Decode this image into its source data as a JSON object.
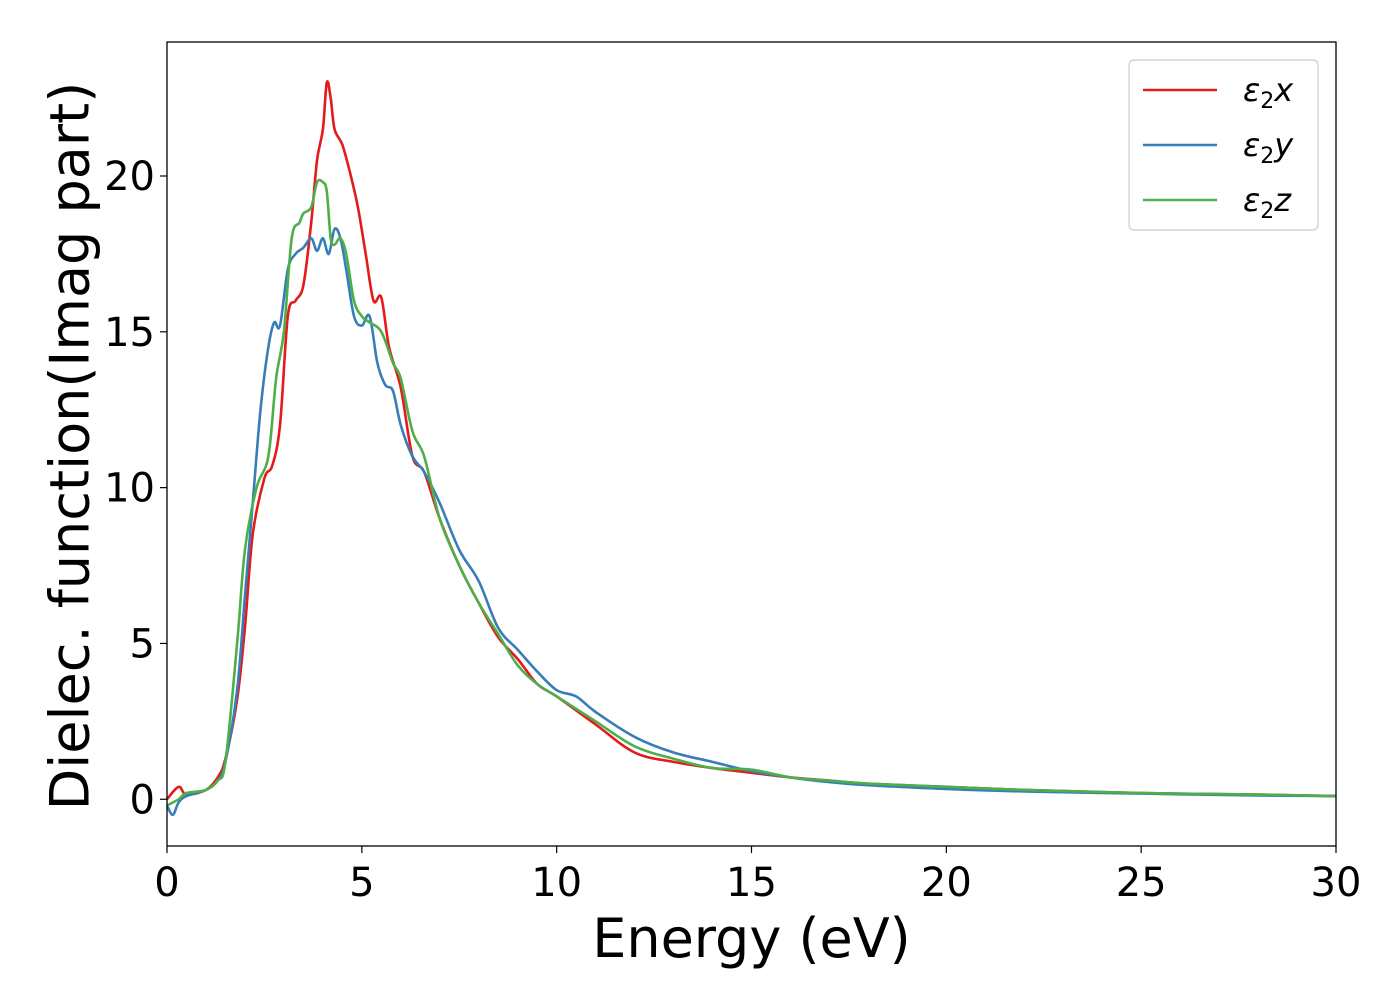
{
  "chart_data": {
    "type": "line",
    "title": "",
    "xlabel": "Energy (eV)",
    "ylabel": "Dielec. function(Imag part)",
    "xlim": [
      0,
      30
    ],
    "ylim": [
      -1.5,
      24.3
    ],
    "xticks": [
      0,
      5,
      10,
      15,
      20,
      25,
      30
    ],
    "yticks": [
      0,
      5,
      10,
      15,
      20
    ],
    "grid": false,
    "legend_position": "top-right",
    "series": [
      {
        "name": "ε2x",
        "legend": {
          "base": "ε",
          "sub": "2",
          "var": "x"
        },
        "color": "#e41a1c",
        "x": [
          0,
          0.3,
          0.5,
          1.0,
          1.3,
          1.5,
          1.8,
          2.0,
          2.2,
          2.5,
          2.7,
          2.9,
          3.1,
          3.3,
          3.5,
          3.7,
          3.85,
          4.0,
          4.1,
          4.2,
          4.3,
          4.5,
          4.7,
          4.9,
          5.1,
          5.3,
          5.5,
          5.7,
          6.0,
          6.3,
          6.6,
          7.0,
          7.5,
          8.0,
          8.5,
          9.0,
          9.5,
          10,
          11,
          12,
          13,
          14,
          15,
          16,
          17,
          18,
          20,
          22,
          25,
          28,
          30
        ],
        "y": [
          0.0,
          0.4,
          0.15,
          0.3,
          0.7,
          1.3,
          3.2,
          5.5,
          8.5,
          10.3,
          10.7,
          12.0,
          15.5,
          16.0,
          16.5,
          18.5,
          20.5,
          21.5,
          23.0,
          22.5,
          21.5,
          21.0,
          20.1,
          19.0,
          17.5,
          16.0,
          16.1,
          14.5,
          13.2,
          11.0,
          10.5,
          9.0,
          7.5,
          6.3,
          5.2,
          4.5,
          3.7,
          3.3,
          2.4,
          1.5,
          1.2,
          1.0,
          0.85,
          0.7,
          0.6,
          0.5,
          0.4,
          0.3,
          0.2,
          0.15,
          0.1
        ]
      },
      {
        "name": "ε2y",
        "legend": {
          "base": "ε",
          "sub": "2",
          "var": "y"
        },
        "color": "#377eb8",
        "x": [
          0,
          0.15,
          0.3,
          0.5,
          1.0,
          1.3,
          1.5,
          1.8,
          2.0,
          2.2,
          2.4,
          2.6,
          2.75,
          2.9,
          3.1,
          3.3,
          3.5,
          3.7,
          3.85,
          4.0,
          4.15,
          4.3,
          4.45,
          4.6,
          4.8,
          5.0,
          5.2,
          5.4,
          5.6,
          5.8,
          6.0,
          6.3,
          6.6,
          7.0,
          7.5,
          8.0,
          8.5,
          9.0,
          9.5,
          10,
          10.5,
          11,
          12,
          13,
          14,
          15,
          16,
          17,
          18,
          20,
          22,
          25,
          28,
          30
        ],
        "y": [
          -0.2,
          -0.5,
          -0.1,
          0.1,
          0.3,
          0.6,
          1.2,
          3.5,
          6.5,
          9.5,
          12.5,
          14.5,
          15.3,
          15.2,
          17.0,
          17.5,
          17.7,
          18.0,
          17.6,
          18.0,
          17.5,
          18.3,
          18.0,
          17.0,
          15.5,
          15.2,
          15.5,
          14.0,
          13.3,
          13.1,
          12.0,
          11.0,
          10.5,
          9.5,
          8.0,
          7.0,
          5.5,
          4.8,
          4.1,
          3.5,
          3.3,
          2.8,
          2.0,
          1.5,
          1.2,
          0.9,
          0.7,
          0.55,
          0.45,
          0.33,
          0.25,
          0.18,
          0.12,
          0.1
        ]
      },
      {
        "name": "ε2z",
        "legend": {
          "base": "ε",
          "sub": "2",
          "var": "z"
        },
        "color": "#4daf4a",
        "x": [
          0,
          0.3,
          0.5,
          1.0,
          1.3,
          1.5,
          1.8,
          2.0,
          2.3,
          2.6,
          2.8,
          3.0,
          3.2,
          3.4,
          3.5,
          3.7,
          3.85,
          4.0,
          4.1,
          4.2,
          4.3,
          4.45,
          4.6,
          4.8,
          5.0,
          5.2,
          5.5,
          5.8,
          6.0,
          6.3,
          6.6,
          7.0,
          7.5,
          8.0,
          8.5,
          9.0,
          9.5,
          10,
          11,
          12,
          13,
          14,
          15,
          16,
          17,
          18,
          20,
          22,
          25,
          28,
          30
        ],
        "y": [
          -0.2,
          0.0,
          0.2,
          0.3,
          0.6,
          1.2,
          5.0,
          8.0,
          10.0,
          11.0,
          13.5,
          15.0,
          18.0,
          18.5,
          18.8,
          19.0,
          19.8,
          19.8,
          19.5,
          18.0,
          17.8,
          18.0,
          17.5,
          16.0,
          15.5,
          15.3,
          15.0,
          14.0,
          13.5,
          11.8,
          11.0,
          9.0,
          7.5,
          6.3,
          5.3,
          4.3,
          3.7,
          3.3,
          2.5,
          1.7,
          1.3,
          1.0,
          0.95,
          0.7,
          0.6,
          0.5,
          0.4,
          0.3,
          0.2,
          0.15,
          0.1
        ]
      }
    ]
  }
}
